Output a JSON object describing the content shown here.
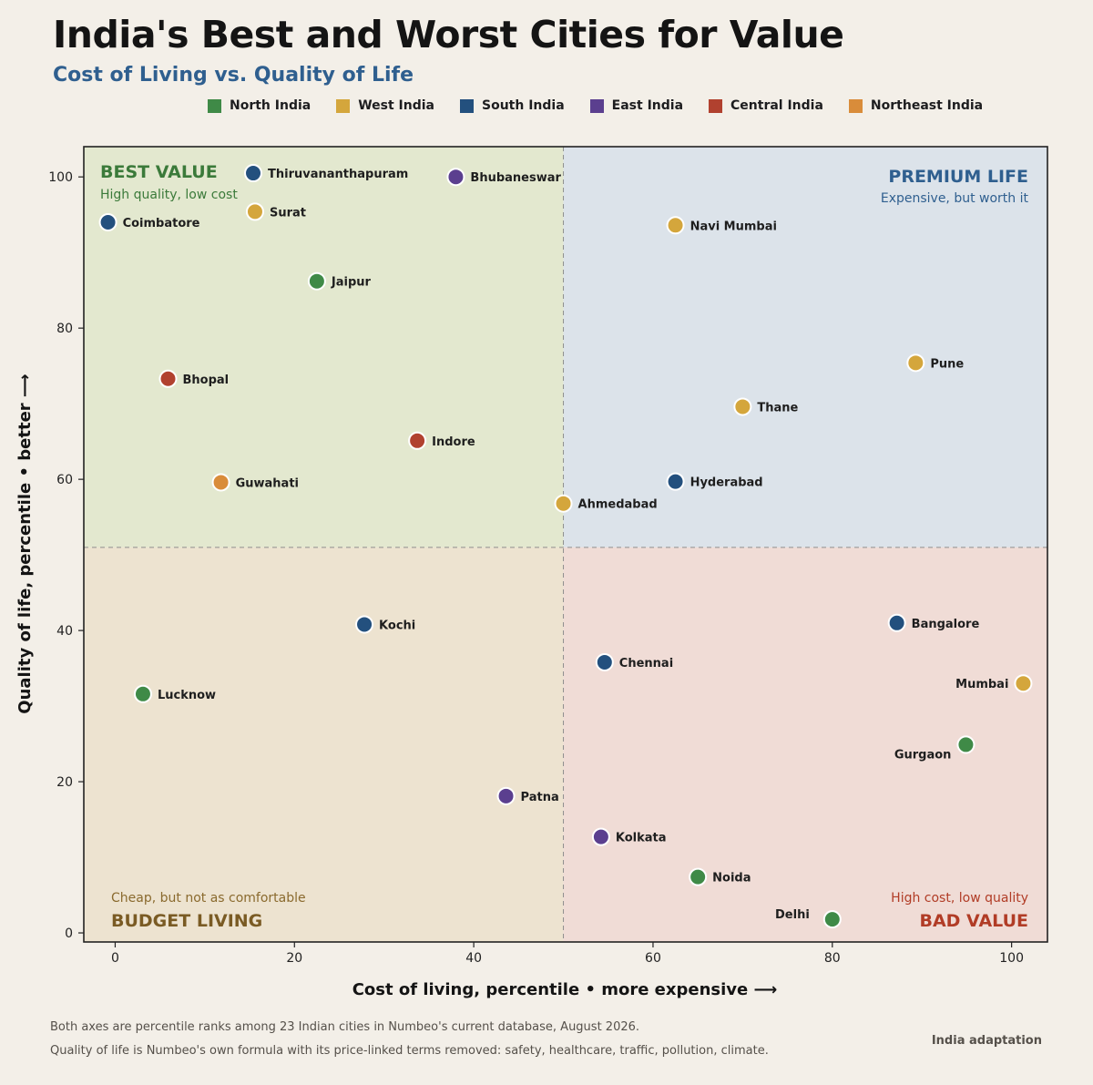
{
  "header": {
    "title": "India's Best and Worst Cities for Value",
    "subtitle": "Cost of Living vs. Quality of Life"
  },
  "legend": [
    {
      "name": "North India",
      "color": "#3f8a47"
    },
    {
      "name": "West India",
      "color": "#d4a63c"
    },
    {
      "name": "South India",
      "color": "#23507e"
    },
    {
      "name": "East India",
      "color": "#5b3f8f"
    },
    {
      "name": "Central India",
      "color": "#b1412f"
    },
    {
      "name": "Northeast India",
      "color": "#d98c3a"
    }
  ],
  "quadrants": {
    "best_value": {
      "title": "BEST VALUE",
      "subtitle": "High quality, low cost",
      "color": "#3b7a3a",
      "fill": "#e3e8cf"
    },
    "premium_life": {
      "title": "PREMIUM LIFE",
      "subtitle": "Expensive, but worth it",
      "color": "#2f5f8f",
      "fill": "#dce3ea"
    },
    "budget_living": {
      "title": "BUDGET LIVING",
      "subtitle": "Cheap, but not as comfortable",
      "color": "#7a5b24",
      "fill": "#ede3d0"
    },
    "bad_value": {
      "title": "BAD VALUE",
      "subtitle": "High cost, low quality",
      "color": "#b13c26",
      "fill": "#f0dcd6"
    }
  },
  "chart_data": {
    "type": "scatter",
    "title": "India's Best and Worst Cities for Value",
    "subtitle": "Cost of Living vs. Quality of Life",
    "xlabel": "Cost of living, percentile  •  more expensive  ⟶",
    "ylabel": "Quality of life, percentile  •  better  ⟶",
    "xlim": [
      -3.5,
      104
    ],
    "ylim": [
      -1.2,
      104
    ],
    "xticks": [
      0,
      20,
      40,
      60,
      80,
      100
    ],
    "yticks": [
      0,
      20,
      40,
      60,
      80,
      100
    ],
    "x_split": 50,
    "y_split": 51,
    "grid": false,
    "legend_position": "top",
    "points": [
      {
        "city": "Thiruvananthapuram",
        "region": "South India",
        "x": 15.4,
        "y": 100.5,
        "label_side": "right"
      },
      {
        "city": "Bhubaneswar",
        "region": "East India",
        "x": 38,
        "y": 100,
        "label_side": "right"
      },
      {
        "city": "Coimbatore",
        "region": "South India",
        "x": -0.8,
        "y": 94,
        "label_side": "right"
      },
      {
        "city": "Surat",
        "region": "West India",
        "x": 15.6,
        "y": 95.4,
        "label_side": "right"
      },
      {
        "city": "Navi Mumbai",
        "region": "West India",
        "x": 62.5,
        "y": 93.6,
        "label_side": "right"
      },
      {
        "city": "Jaipur",
        "region": "North India",
        "x": 22.5,
        "y": 86.2,
        "label_side": "right"
      },
      {
        "city": "Pune",
        "region": "West India",
        "x": 89.3,
        "y": 75.4,
        "label_side": "right"
      },
      {
        "city": "Bhopal",
        "region": "Central India",
        "x": 5.9,
        "y": 73.3,
        "label_side": "right"
      },
      {
        "city": "Thane",
        "region": "West India",
        "x": 70,
        "y": 69.6,
        "label_side": "right"
      },
      {
        "city": "Indore",
        "region": "Central India",
        "x": 33.7,
        "y": 65.1,
        "label_side": "right"
      },
      {
        "city": "Guwahati",
        "region": "Northeast India",
        "x": 11.8,
        "y": 59.6,
        "label_side": "right"
      },
      {
        "city": "Hyderabad",
        "region": "South India",
        "x": 62.5,
        "y": 59.7,
        "label_side": "right"
      },
      {
        "city": "Ahmedabad",
        "region": "West India",
        "x": 50,
        "y": 56.8,
        "label_side": "right"
      },
      {
        "city": "Kochi",
        "region": "South India",
        "x": 27.8,
        "y": 40.8,
        "label_side": "right"
      },
      {
        "city": "Bangalore",
        "region": "South India",
        "x": 87.2,
        "y": 41,
        "label_side": "right"
      },
      {
        "city": "Chennai",
        "region": "South India",
        "x": 54.6,
        "y": 35.8,
        "label_side": "right"
      },
      {
        "city": "Mumbai",
        "region": "West India",
        "x": 101.3,
        "y": 33,
        "label_side": "left"
      },
      {
        "city": "Lucknow",
        "region": "North India",
        "x": 3.1,
        "y": 31.6,
        "label_side": "right"
      },
      {
        "city": "Gurgaon",
        "region": "North India",
        "x": 94.9,
        "y": 24.9,
        "label_side": "below-left"
      },
      {
        "city": "Patna",
        "region": "East India",
        "x": 43.6,
        "y": 18.1,
        "label_side": "right"
      },
      {
        "city": "Kolkata",
        "region": "East India",
        "x": 54.2,
        "y": 12.7,
        "label_side": "right"
      },
      {
        "city": "Noida",
        "region": "North India",
        "x": 65,
        "y": 7.4,
        "label_side": "right"
      },
      {
        "city": "Delhi",
        "region": "North India",
        "x": 80,
        "y": 1.8,
        "label_side": "above-left"
      }
    ]
  },
  "footnotes": [
    "Both axes are percentile ranks among 23 Indian cities in Numbeo's current database, August 2026.",
    "Quality of life is Numbeo's own formula with its price-linked terms removed: safety, healthcare, traffic, pollution, climate."
  ],
  "credit": "India adaptation"
}
